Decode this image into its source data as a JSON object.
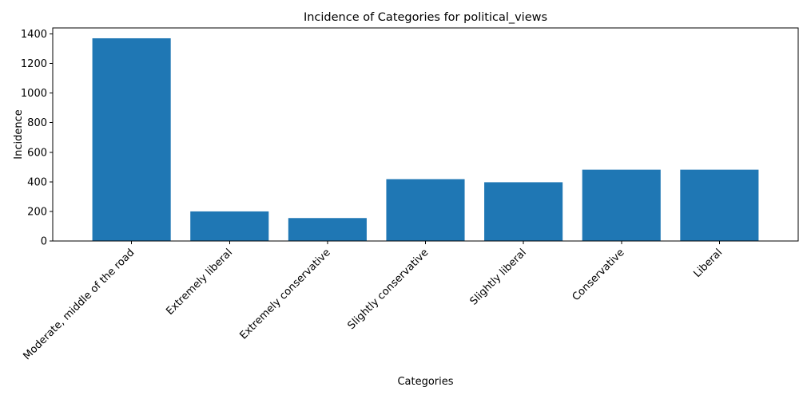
{
  "chart_data": {
    "type": "bar",
    "title": "Incidence of Categories for political_views",
    "xlabel": "Categories",
    "ylabel": "Incidence",
    "categories": [
      "Moderate, middle of the road",
      "Extremely liberal",
      "Extremely conservative",
      "Slightly conservative",
      "Slightly liberal",
      "Conservative",
      "Liberal"
    ],
    "values": [
      1370,
      200,
      155,
      418,
      397,
      482,
      482
    ],
    "ylim": [
      0,
      1440
    ],
    "yticks": [
      "0",
      "200",
      "400",
      "600",
      "800",
      "1000",
      "1200",
      "1400"
    ],
    "bar_color": "#1f77b4",
    "grid": false,
    "legend": "none"
  }
}
